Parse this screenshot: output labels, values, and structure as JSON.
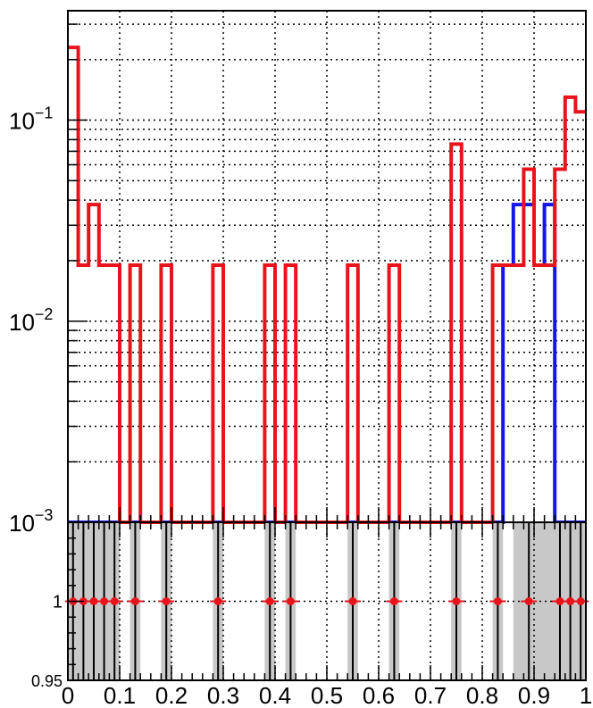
{
  "chart_data": [
    {
      "type": "histogram-step",
      "y_scale": "log",
      "xlim": [
        0,
        1
      ],
      "ylim": [
        0.001,
        0.35
      ],
      "bin_width": 0.02,
      "grid": true,
      "y_tick_labels": [
        {
          "value": 0.001,
          "base": "10",
          "exp": "−3"
        },
        {
          "value": 0.01,
          "base": "10",
          "exp": "−2"
        },
        {
          "value": 0.1,
          "base": "10",
          "exp": "−1"
        }
      ],
      "colors": {
        "red": "#e8141c",
        "blue": "#1515e6"
      },
      "series": [
        {
          "color_key": "blue",
          "bins": [
            {
              "x": 0.84,
              "y": 0.019
            },
            {
              "x": 0.86,
              "y": 0.038
            },
            {
              "x": 0.88,
              "y": 0.038
            },
            {
              "x": 0.9,
              "y": 0.019
            },
            {
              "x": 0.92,
              "y": 0.038
            }
          ]
        },
        {
          "color_key": "red",
          "bins": [
            {
              "x": 0.0,
              "y": 0.23
            },
            {
              "x": 0.02,
              "y": 0.019
            },
            {
              "x": 0.04,
              "y": 0.038
            },
            {
              "x": 0.06,
              "y": 0.019
            },
            {
              "x": 0.08,
              "y": 0.019
            },
            {
              "x": 0.12,
              "y": 0.019
            },
            {
              "x": 0.18,
              "y": 0.019
            },
            {
              "x": 0.28,
              "y": 0.019
            },
            {
              "x": 0.38,
              "y": 0.019
            },
            {
              "x": 0.42,
              "y": 0.019
            },
            {
              "x": 0.54,
              "y": 0.019
            },
            {
              "x": 0.62,
              "y": 0.019
            },
            {
              "x": 0.74,
              "y": 0.076
            },
            {
              "x": 0.82,
              "y": 0.019
            },
            {
              "x": 0.84,
              "y": 0.019
            },
            {
              "x": 0.86,
              "y": 0.019
            },
            {
              "x": 0.88,
              "y": 0.057
            },
            {
              "x": 0.9,
              "y": 0.019
            },
            {
              "x": 0.92,
              "y": 0.019
            },
            {
              "x": 0.94,
              "y": 0.057
            },
            {
              "x": 0.96,
              "y": 0.13
            },
            {
              "x": 0.98,
              "y": 0.11
            }
          ]
        }
      ]
    },
    {
      "type": "ratio",
      "xlim": [
        0,
        1
      ],
      "ylim": [
        0.95,
        1.05
      ],
      "y_tick_labels": [
        "1",
        "0.95"
      ],
      "x_tick_labels": [
        "0",
        "0.1",
        "0.2",
        "0.3",
        "0.4",
        "0.5",
        "0.6",
        "0.7",
        "0.8",
        "0.9",
        "1"
      ],
      "grey_bands": [
        [
          0.0,
          0.1
        ],
        [
          0.12,
          0.14
        ],
        [
          0.18,
          0.2
        ],
        [
          0.28,
          0.3
        ],
        [
          0.38,
          0.4
        ],
        [
          0.42,
          0.44
        ],
        [
          0.54,
          0.56
        ],
        [
          0.62,
          0.64
        ],
        [
          0.74,
          0.76
        ],
        [
          0.82,
          0.84
        ],
        [
          0.86,
          1.0
        ]
      ],
      "points": [
        {
          "x": 0.01,
          "y": 1
        },
        {
          "x": 0.03,
          "y": 1
        },
        {
          "x": 0.05,
          "y": 1
        },
        {
          "x": 0.07,
          "y": 1
        },
        {
          "x": 0.09,
          "y": 1
        },
        {
          "x": 0.13,
          "y": 1
        },
        {
          "x": 0.19,
          "y": 1
        },
        {
          "x": 0.29,
          "y": 1
        },
        {
          "x": 0.39,
          "y": 1
        },
        {
          "x": 0.43,
          "y": 1
        },
        {
          "x": 0.55,
          "y": 1
        },
        {
          "x": 0.63,
          "y": 1
        },
        {
          "x": 0.75,
          "y": 1
        },
        {
          "x": 0.83,
          "y": 1
        },
        {
          "x": 0.89,
          "y": 1
        },
        {
          "x": 0.95,
          "y": 1
        },
        {
          "x": 0.97,
          "y": 1
        },
        {
          "x": 0.99,
          "y": 1
        }
      ],
      "point_color": "#e8141c",
      "band_color": "#c8c8c8"
    }
  ]
}
